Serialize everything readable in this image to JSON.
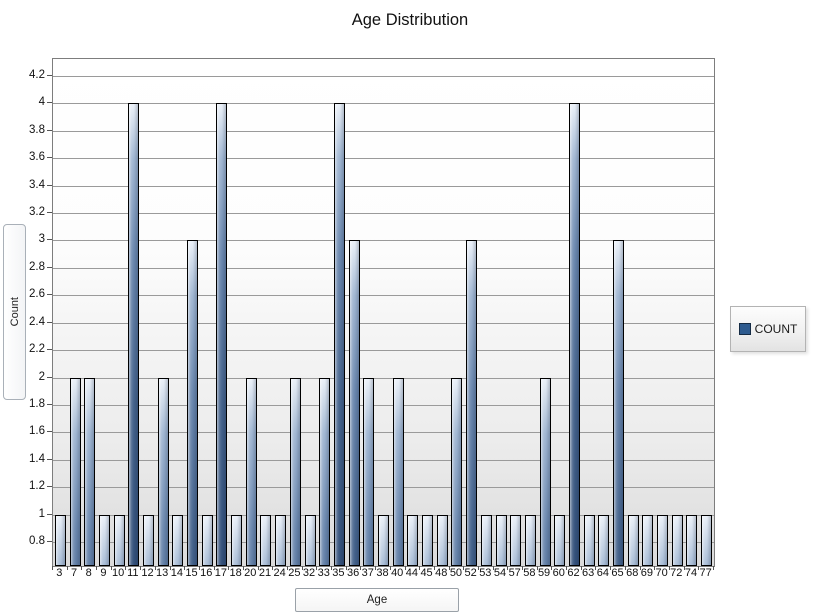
{
  "chart_data": {
    "type": "bar",
    "title": "Age Distribution",
    "xlabel": "Age",
    "ylabel": "Count",
    "categories": [
      "3",
      "7",
      "8",
      "9",
      "10",
      "11",
      "12",
      "13",
      "14",
      "15",
      "16",
      "17",
      "18",
      "20",
      "21",
      "24",
      "25",
      "32",
      "33",
      "35",
      "36",
      "37",
      "38",
      "40",
      "44",
      "45",
      "48",
      "50",
      "52",
      "53",
      "54",
      "57",
      "58",
      "59",
      "60",
      "62",
      "63",
      "64",
      "65",
      "68",
      "69",
      "70",
      "72",
      "74",
      "77"
    ],
    "values": [
      1,
      2,
      2,
      1,
      1,
      4,
      1,
      2,
      1,
      3,
      1,
      4,
      1,
      2,
      1,
      1,
      2,
      1,
      2,
      4,
      3,
      2,
      1,
      2,
      1,
      1,
      1,
      2,
      3,
      1,
      1,
      1,
      1,
      2,
      1,
      4,
      1,
      1,
      3,
      1,
      1,
      1,
      1,
      1,
      1
    ],
    "series": [
      {
        "name": "COUNT"
      }
    ],
    "y_tick_labels": [
      "0.8",
      "1",
      "1.2",
      "1.4",
      "1.6",
      "1.8",
      "2",
      "2.2",
      "2.4",
      "2.6",
      "2.8",
      "3",
      "3.2",
      "3.4",
      "3.6",
      "3.8",
      "4",
      "4.2"
    ],
    "ylim": [
      0.63,
      4.32
    ],
    "grid": true,
    "legend": {
      "label": "COUNT",
      "position": "right",
      "swatch_color": "#2e5b8f"
    }
  },
  "colors": {
    "bar_gradient_top": "#eaf0f8",
    "bar_gradient_mid1": "#9fb5d1",
    "bar_gradient_mid2": "#6a87ae",
    "bar_gradient_mid3": "#44628b",
    "bar_gradient_bottom": "#33507a",
    "gridline": "#9a9a9a",
    "plot_border": "#7d7d7d"
  }
}
